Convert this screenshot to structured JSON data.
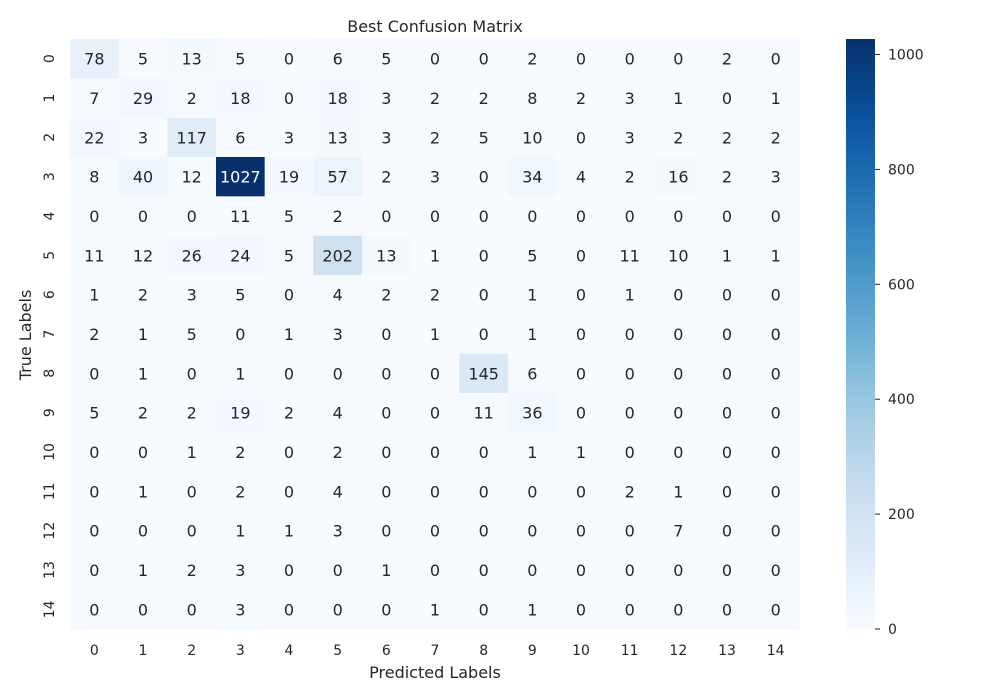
{
  "chart_data": {
    "type": "heatmap",
    "title": "Best Confusion Matrix",
    "xlabel": "Predicted Labels",
    "ylabel": "True Labels",
    "x_categories": [
      "0",
      "1",
      "2",
      "3",
      "4",
      "5",
      "6",
      "7",
      "8",
      "9",
      "10",
      "11",
      "12",
      "13",
      "14"
    ],
    "y_categories": [
      "0",
      "1",
      "2",
      "3",
      "4",
      "5",
      "6",
      "7",
      "8",
      "9",
      "10",
      "11",
      "12",
      "13",
      "14"
    ],
    "values": [
      [
        78,
        5,
        13,
        5,
        0,
        6,
        5,
        0,
        0,
        2,
        0,
        0,
        0,
        2,
        0
      ],
      [
        7,
        29,
        2,
        18,
        0,
        18,
        3,
        2,
        2,
        8,
        2,
        3,
        1,
        0,
        1
      ],
      [
        22,
        3,
        117,
        6,
        3,
        13,
        3,
        2,
        5,
        10,
        0,
        3,
        2,
        2,
        2
      ],
      [
        8,
        40,
        12,
        1027,
        19,
        57,
        2,
        3,
        0,
        34,
        4,
        2,
        16,
        2,
        3
      ],
      [
        0,
        0,
        0,
        11,
        5,
        2,
        0,
        0,
        0,
        0,
        0,
        0,
        0,
        0,
        0
      ],
      [
        11,
        12,
        26,
        24,
        5,
        202,
        13,
        1,
        0,
        5,
        0,
        11,
        10,
        1,
        1
      ],
      [
        1,
        2,
        3,
        5,
        0,
        4,
        2,
        2,
        0,
        1,
        0,
        1,
        0,
        0,
        0
      ],
      [
        2,
        1,
        5,
        0,
        1,
        3,
        0,
        1,
        0,
        1,
        0,
        0,
        0,
        0,
        0
      ],
      [
        0,
        1,
        0,
        1,
        0,
        0,
        0,
        0,
        145,
        6,
        0,
        0,
        0,
        0,
        0
      ],
      [
        5,
        2,
        2,
        19,
        2,
        4,
        0,
        0,
        11,
        36,
        0,
        0,
        0,
        0,
        0
      ],
      [
        0,
        0,
        1,
        2,
        0,
        2,
        0,
        0,
        0,
        1,
        1,
        0,
        0,
        0,
        0
      ],
      [
        0,
        1,
        0,
        2,
        0,
        4,
        0,
        0,
        0,
        0,
        0,
        2,
        1,
        0,
        0
      ],
      [
        0,
        0,
        0,
        1,
        1,
        3,
        0,
        0,
        0,
        0,
        0,
        0,
        7,
        0,
        0
      ],
      [
        0,
        1,
        2,
        3,
        0,
        0,
        1,
        0,
        0,
        0,
        0,
        0,
        0,
        0,
        0
      ],
      [
        0,
        0,
        0,
        3,
        0,
        0,
        0,
        1,
        0,
        1,
        0,
        0,
        0,
        0,
        0
      ]
    ],
    "colormap": "Blues",
    "colorbar": {
      "min": 0,
      "max": 1027,
      "ticks": [
        0,
        200,
        400,
        600,
        800,
        1000
      ]
    },
    "grid": false,
    "annotated": true
  }
}
